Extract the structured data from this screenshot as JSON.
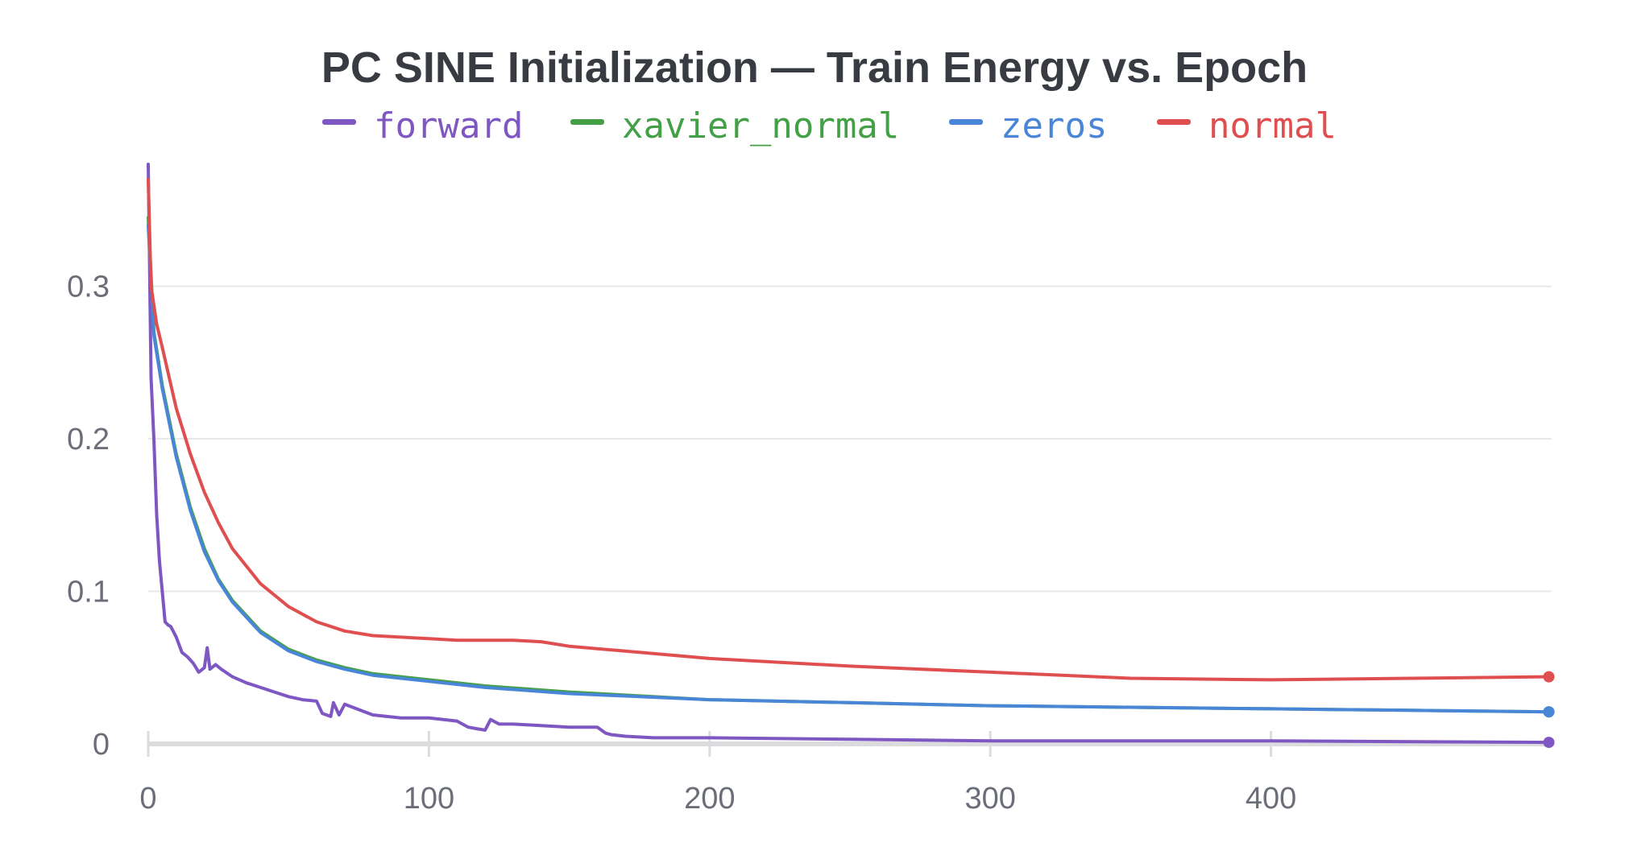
{
  "chart_data": {
    "type": "line",
    "title": "PC SINE Initialization — Train Energy vs. Epoch",
    "xlabel": "",
    "ylabel": "",
    "xlim": [
      0,
      500
    ],
    "ylim": [
      0,
      0.38
    ],
    "x_ticks": [
      "0",
      "100",
      "200",
      "300",
      "400"
    ],
    "x_tick_values": [
      0,
      100,
      200,
      300,
      400
    ],
    "y_ticks": [
      "0",
      "0.1",
      "0.2",
      "0.3"
    ],
    "y_tick_values": [
      0,
      0.1,
      0.2,
      0.3
    ],
    "grid": "horizontal",
    "legend_position": "top-center",
    "series": [
      {
        "name": "forward",
        "color": "#7e57c2",
        "x": [
          0,
          1,
          2,
          3,
          4,
          5,
          6,
          7,
          8,
          10,
          12,
          14,
          16,
          18,
          20,
          21,
          22,
          24,
          26,
          30,
          35,
          40,
          45,
          50,
          55,
          60,
          62,
          65,
          66,
          68,
          70,
          80,
          90,
          100,
          110,
          114,
          117,
          120,
          122,
          125,
          130,
          140,
          150,
          160,
          163,
          165,
          170,
          180,
          200,
          250,
          300,
          350,
          400,
          450,
          499
        ],
        "y": [
          0.38,
          0.24,
          0.2,
          0.15,
          0.12,
          0.1,
          0.08,
          0.078,
          0.077,
          0.07,
          0.06,
          0.057,
          0.053,
          0.047,
          0.05,
          0.063,
          0.049,
          0.052,
          0.049,
          0.044,
          0.04,
          0.037,
          0.034,
          0.031,
          0.029,
          0.028,
          0.02,
          0.018,
          0.027,
          0.019,
          0.026,
          0.019,
          0.017,
          0.017,
          0.015,
          0.011,
          0.01,
          0.009,
          0.016,
          0.013,
          0.013,
          0.012,
          0.011,
          0.011,
          0.007,
          0.006,
          0.005,
          0.004,
          0.004,
          0.003,
          0.002,
          0.002,
          0.002,
          0.0015,
          0.001
        ]
      },
      {
        "name": "xavier_normal",
        "color": "#43a047",
        "x": [
          0,
          2,
          5,
          10,
          15,
          20,
          25,
          30,
          40,
          50,
          60,
          70,
          80,
          100,
          120,
          150,
          200,
          250,
          300,
          350,
          400,
          450,
          499
        ],
        "y": [
          0.345,
          0.27,
          0.235,
          0.19,
          0.155,
          0.128,
          0.108,
          0.094,
          0.074,
          0.062,
          0.055,
          0.05,
          0.046,
          0.042,
          0.038,
          0.034,
          0.029,
          0.027,
          0.025,
          0.024,
          0.023,
          0.022,
          0.021
        ]
      },
      {
        "name": "zeros",
        "color": "#4a86d8",
        "x": [
          0,
          2,
          5,
          10,
          15,
          20,
          25,
          30,
          40,
          50,
          60,
          70,
          80,
          100,
          120,
          150,
          200,
          250,
          300,
          350,
          400,
          450,
          499
        ],
        "y": [
          0.34,
          0.268,
          0.233,
          0.188,
          0.153,
          0.126,
          0.107,
          0.093,
          0.073,
          0.061,
          0.054,
          0.049,
          0.045,
          0.041,
          0.037,
          0.033,
          0.029,
          0.027,
          0.025,
          0.024,
          0.023,
          0.022,
          0.021
        ]
      },
      {
        "name": "normal",
        "color": "#e04f4f",
        "x": [
          0,
          1,
          3,
          5,
          10,
          15,
          20,
          25,
          30,
          40,
          50,
          60,
          70,
          80,
          100,
          110,
          120,
          130,
          140,
          150,
          175,
          200,
          250,
          300,
          350,
          400,
          450,
          499
        ],
        "y": [
          0.37,
          0.3,
          0.275,
          0.26,
          0.22,
          0.19,
          0.165,
          0.145,
          0.128,
          0.105,
          0.09,
          0.08,
          0.074,
          0.071,
          0.069,
          0.068,
          0.068,
          0.068,
          0.067,
          0.064,
          0.06,
          0.056,
          0.051,
          0.047,
          0.043,
          0.042,
          0.043,
          0.044
        ]
      }
    ]
  }
}
